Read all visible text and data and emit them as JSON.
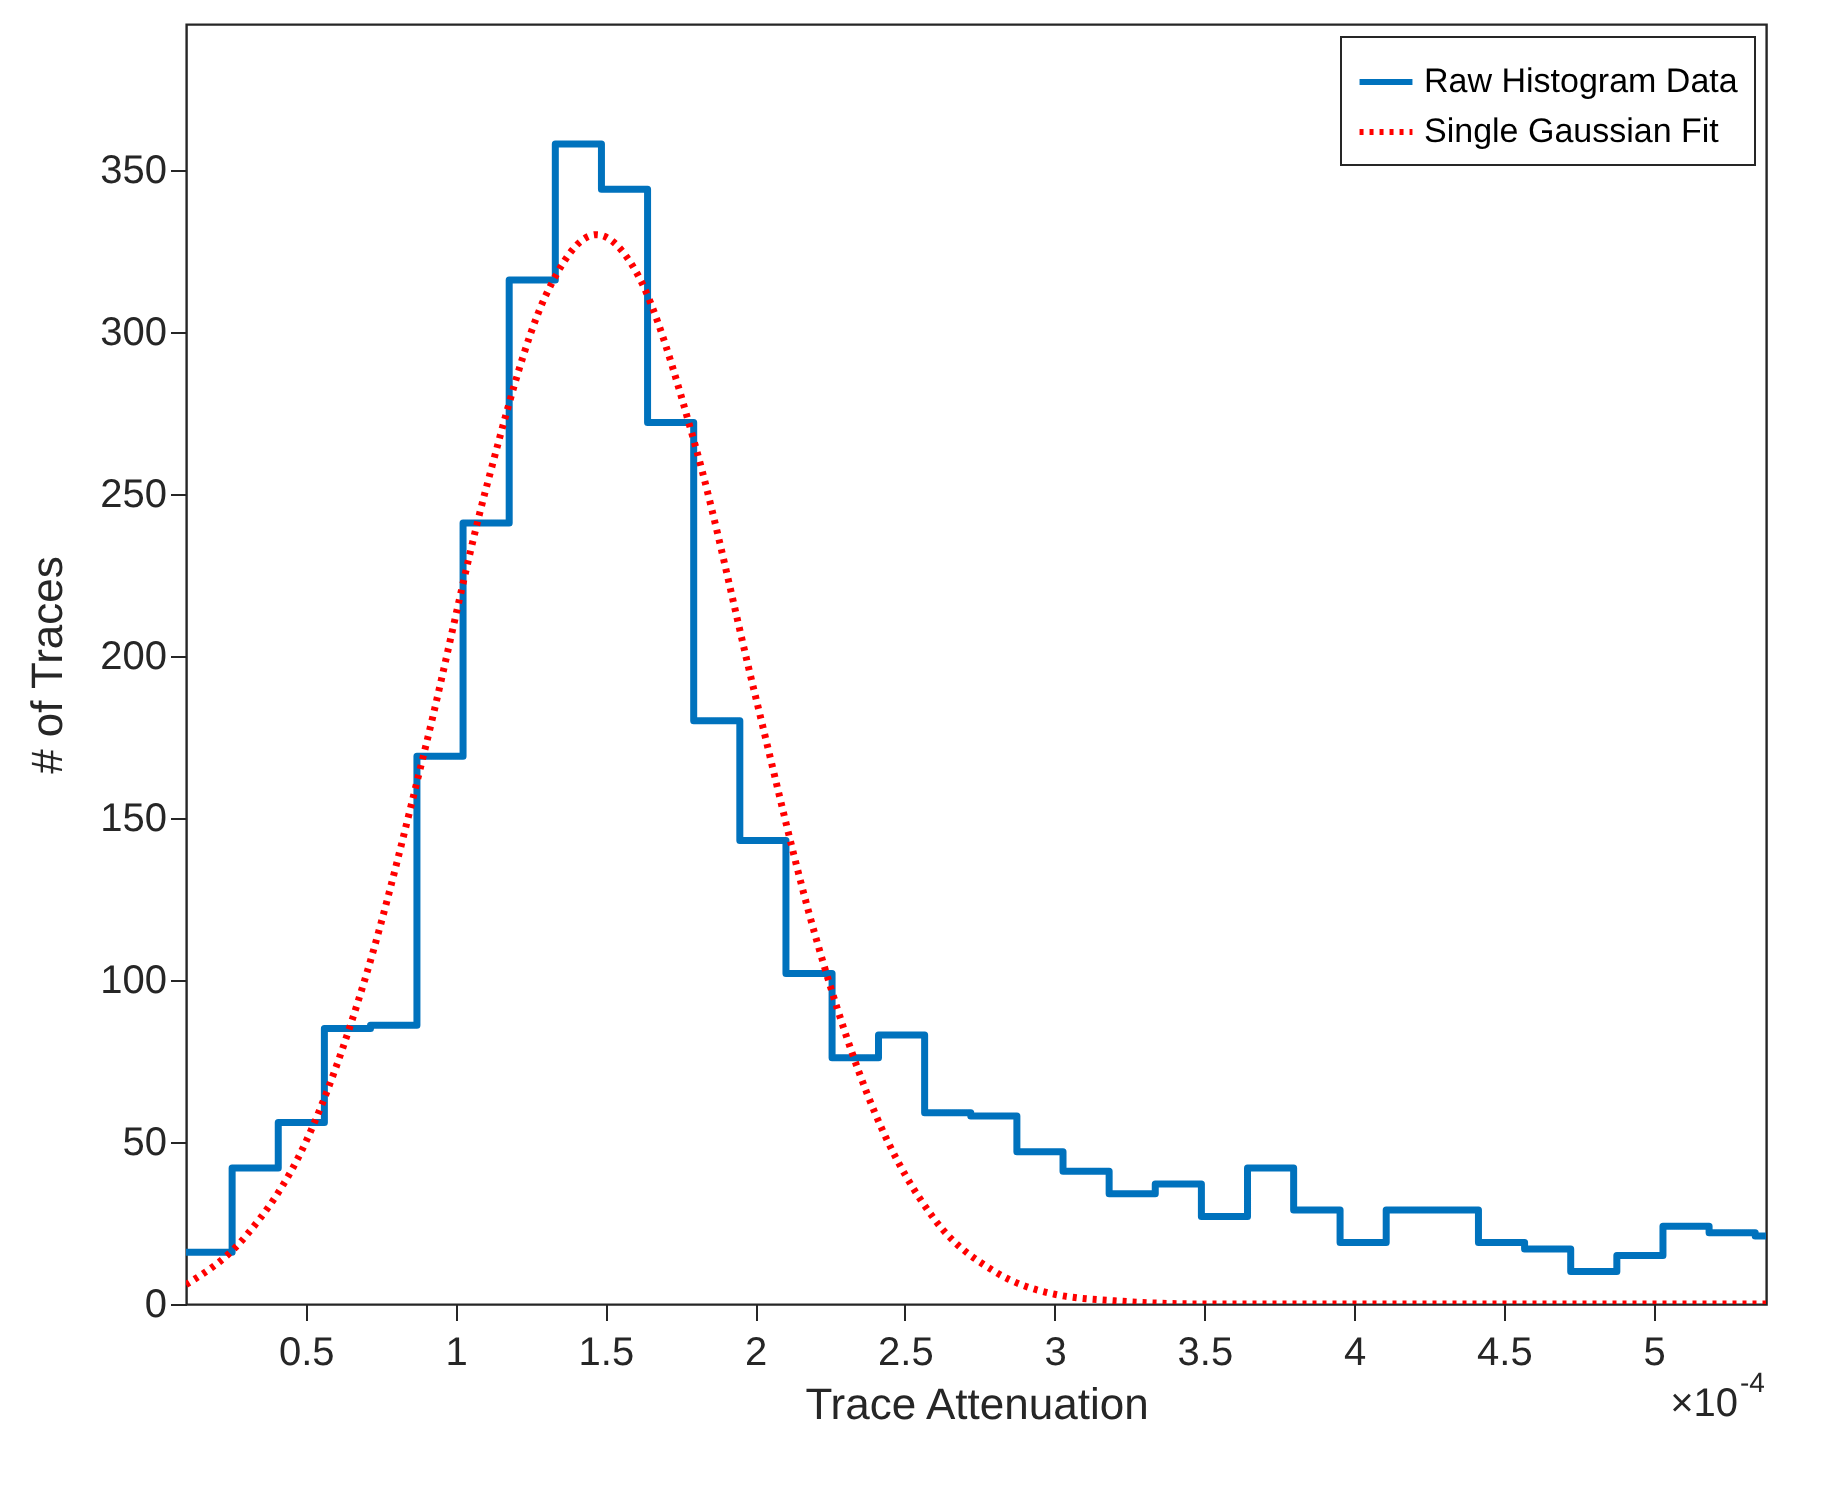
{
  "chart_data": {
    "type": "histogram",
    "xlabel": "Trace Attenuation",
    "ylabel": "# of Traces",
    "annotations": [
      "×10$^{-4}$"
    ],
    "bins": [
      0.1,
      0.254,
      0.408,
      0.562,
      0.716,
      0.871,
      1.025,
      1.179,
      1.333,
      1.487,
      1.641,
      1.795,
      1.949,
      2.103,
      2.257,
      2.412,
      2.566,
      2.72,
      2.874,
      3.028,
      3.182,
      3.336,
      3.49,
      3.644,
      3.798,
      3.953,
      4.107,
      4.261,
      4.415,
      4.569,
      4.723,
      4.877,
      5.031,
      5.185,
      5.339,
      5.375
    ],
    "series": [
      {
        "name": "Raw Histogram Data",
        "color": "#0072bd",
        "values": [
          16,
          42,
          56,
          85,
          86,
          169,
          241,
          316,
          358,
          344,
          272,
          180,
          143,
          102,
          76,
          83,
          59,
          58,
          47,
          41,
          34,
          37,
          27,
          42,
          29,
          19,
          29,
          29,
          19,
          17,
          10,
          15,
          24,
          22,
          21
        ]
      },
      {
        "name": "Single Gaussian Fit",
        "type": "line",
        "line_style": "dotted",
        "color": "#ff0000",
        "x": [
          0.1,
          0.3,
          0.5,
          0.7,
          0.9,
          1.1,
          1.3,
          1.47,
          1.6,
          1.8,
          2.0,
          2.2,
          2.4,
          2.6,
          2.8,
          3.0,
          3.2,
          3.5,
          4,
          4.5,
          5,
          5.375
        ],
        "values": [
          6,
          21,
          50,
          101,
          172,
          251,
          311,
          330,
          319,
          265,
          188,
          114,
          59,
          26,
          10,
          3,
          1,
          0,
          0,
          0,
          0,
          0
        ]
      }
    ],
    "xlim": [
      0.1,
      5.375
    ],
    "ylim": [
      0,
      395
    ],
    "xticks": [
      0.5,
      1,
      1.5,
      2,
      2.5,
      3,
      3.5,
      4,
      4.5,
      5
    ],
    "yticks": [
      0,
      50,
      100,
      150,
      200,
      250,
      300,
      350
    ],
    "legend": "top right"
  }
}
